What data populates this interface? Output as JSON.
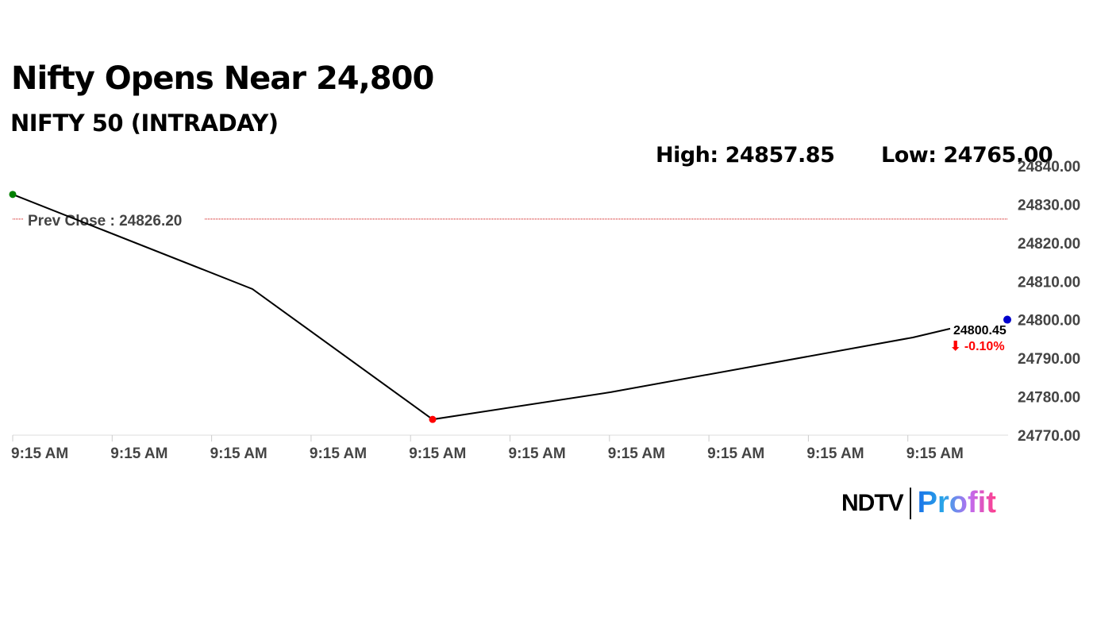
{
  "chart_data": {
    "type": "line",
    "title": "Nifty Opens Near 24,800",
    "subtitle": "NIFTY 50 (INTRADAY)",
    "high_label": "High: 24857.85",
    "low_label": "Low: 24765.00",
    "values": [
      24832.6,
      24808.0,
      24774.1,
      24781.2,
      24795.4,
      24797.7
    ],
    "x_tick_labels": [
      "9:15 AM",
      "9:15 AM",
      "9:15 AM",
      "9:15 AM",
      "9:15 AM",
      "9:15 AM",
      "9:15 AM",
      "9:15 AM",
      "9:15 AM",
      "9:15 AM"
    ],
    "y_ticks": [
      "24840.00",
      "24830.00",
      "24820.00",
      "24810.00",
      "24800.00",
      "24790.00",
      "24780.00",
      "24770.00"
    ],
    "ylim": [
      24770,
      24840
    ],
    "prev_close": 24826.2,
    "prev_close_label": "Prev Close : 24826.20",
    "last_value_label": "24800.45",
    "change_label": "⬇ -0.10%",
    "colors": {
      "line": "#000000",
      "prev_close": "#cc0000",
      "start_dot": "#008000",
      "low_dot": "#ff0000",
      "end_dot": "#0000cc",
      "change": "#ff0000"
    }
  },
  "brand": {
    "ndtv": "NDTV",
    "profit": "Profit"
  }
}
